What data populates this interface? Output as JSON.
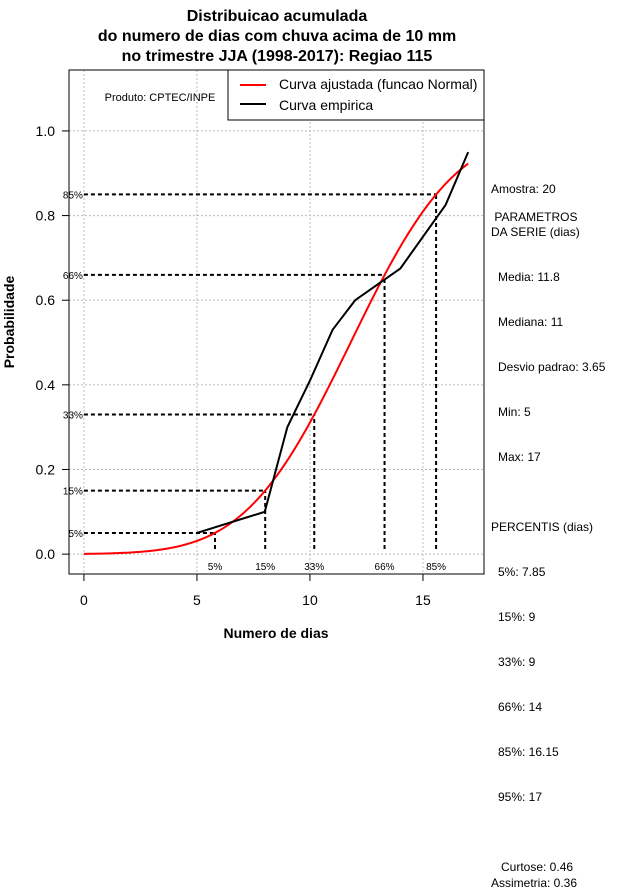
{
  "chart_data": {
    "type": "line",
    "title": [
      "Distribuicao acumulada",
      "do numero de dias com chuva acima de 10 mm",
      "no trimestre JJA (1998-2017): Regiao 115"
    ],
    "xlabel": "Numero de dias",
    "ylabel": "Probabilidade",
    "xlim": [
      -0.66,
      17.7
    ],
    "ylim": [
      -0.047,
      1.144
    ],
    "xticks": [
      0,
      5,
      10,
      15
    ],
    "yticks": [
      0.0,
      0.2,
      0.4,
      0.6,
      0.8,
      1.0
    ],
    "ytick_labels": [
      "0.0",
      "0.2",
      "0.4",
      "0.6",
      "0.8",
      "1.0"
    ],
    "grid": true,
    "credit": "Produto: CPTEC/INPE",
    "legend": {
      "placement": "top-right",
      "entries": [
        {
          "label": "Curva ajustada (funcao Normal)",
          "color": "#ff0000"
        },
        {
          "label": "Curva empirica",
          "color": "#000000"
        }
      ]
    },
    "series": [
      {
        "name": "Curva ajustada (funcao Normal)",
        "color": "#ff0000",
        "distribution": "normal",
        "mean": 11.8,
        "sd": 3.65,
        "x_range": [
          0,
          17
        ]
      },
      {
        "name": "Curva empirica",
        "color": "#000000",
        "x": [
          5,
          8,
          9,
          10,
          11,
          12,
          14,
          16,
          17
        ],
        "y": [
          0.05,
          0.1,
          0.3,
          0.41,
          0.53,
          0.6,
          0.675,
          0.825,
          0.95
        ]
      }
    ],
    "percentile_markers": [
      {
        "label": "5%",
        "p": 0.05,
        "x": 5.8
      },
      {
        "label": "15%",
        "p": 0.15,
        "x": 8.02
      },
      {
        "label": "33%",
        "p": 0.33,
        "x": 10.19
      },
      {
        "label": "66%",
        "p": 0.66,
        "x": 13.3
      },
      {
        "label": "85%",
        "p": 0.85,
        "x": 15.58
      }
    ]
  },
  "stats": {
    "amostra": "Amostra: 20",
    "params_title": " PARAMETROS\nDA SERIE (dias)",
    "params": [
      "Media: 11.8",
      "Mediana: 11",
      "Desvio padrao: 3.65",
      "Min: 5",
      "Max: 17"
    ],
    "percentis_title": "PERCENTIS (dias)",
    "percentis": [
      "5%: 7.85",
      "15%: 9",
      "33%: 9",
      "66%: 14",
      "85%: 16.15",
      "95%: 17"
    ],
    "curtose": "Curtose: 0.46",
    "assimetria": "Assimetria: 0.36"
  }
}
